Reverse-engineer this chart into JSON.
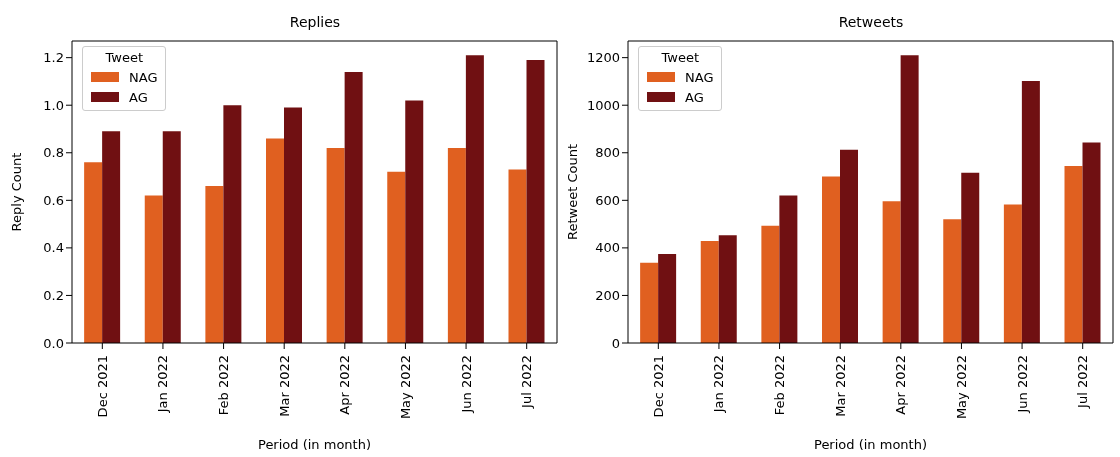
{
  "chart_data": [
    {
      "type": "bar",
      "title": "Replies",
      "xlabel": "Period (in month)",
      "ylabel": "Reply Count",
      "categories": [
        "Dec 2021",
        "Jan 2022",
        "Feb 2022",
        "Mar 2022",
        "Apr 2022",
        "May 2022",
        "Jun 2022",
        "Jul 2022"
      ],
      "series": [
        {
          "name": "NAG",
          "color": "#e06020",
          "values": [
            0.76,
            0.62,
            0.66,
            0.86,
            0.82,
            0.72,
            0.82,
            0.73
          ]
        },
        {
          "name": "AG",
          "color": "#701012",
          "values": [
            0.89,
            0.89,
            1.0,
            0.99,
            1.14,
            1.02,
            1.21,
            1.19
          ]
        }
      ],
      "ylim": [
        0,
        1.27
      ],
      "yticks": [
        {
          "value": 0,
          "label": "0.0"
        },
        {
          "value": 0.2,
          "label": "0.2"
        },
        {
          "value": 0.4,
          "label": "0.4"
        },
        {
          "value": 0.6,
          "label": "0.6"
        },
        {
          "value": 0.8,
          "label": "0.8"
        },
        {
          "value": 1.0,
          "label": "1.0"
        },
        {
          "value": 1.2,
          "label": "1.2"
        }
      ],
      "grid": false,
      "legend": "top left",
      "legend_title": "Tweet"
    },
    {
      "type": "bar",
      "title": "Retweets",
      "xlabel": "Period (in month)",
      "ylabel": "Retweet Count",
      "categories": [
        "Dec 2021",
        "Jan 2022",
        "Feb 2022",
        "Mar 2022",
        "Apr 2022",
        "May 2022",
        "Jun 2022",
        "Jul 2022"
      ],
      "series": [
        {
          "name": "NAG",
          "color": "#e06020",
          "values": [
            338,
            429,
            493,
            700,
            596,
            520,
            582,
            744
          ]
        },
        {
          "name": "AG",
          "color": "#701012",
          "values": [
            374,
            453,
            620,
            813,
            1210,
            716,
            1102,
            843
          ]
        }
      ],
      "ylim": [
        0,
        1270
      ],
      "yticks": [
        0,
        200,
        400,
        600,
        800,
        1000,
        1200
      ],
      "grid": false,
      "legend": "top left",
      "legend_title": "Tweet"
    }
  ]
}
